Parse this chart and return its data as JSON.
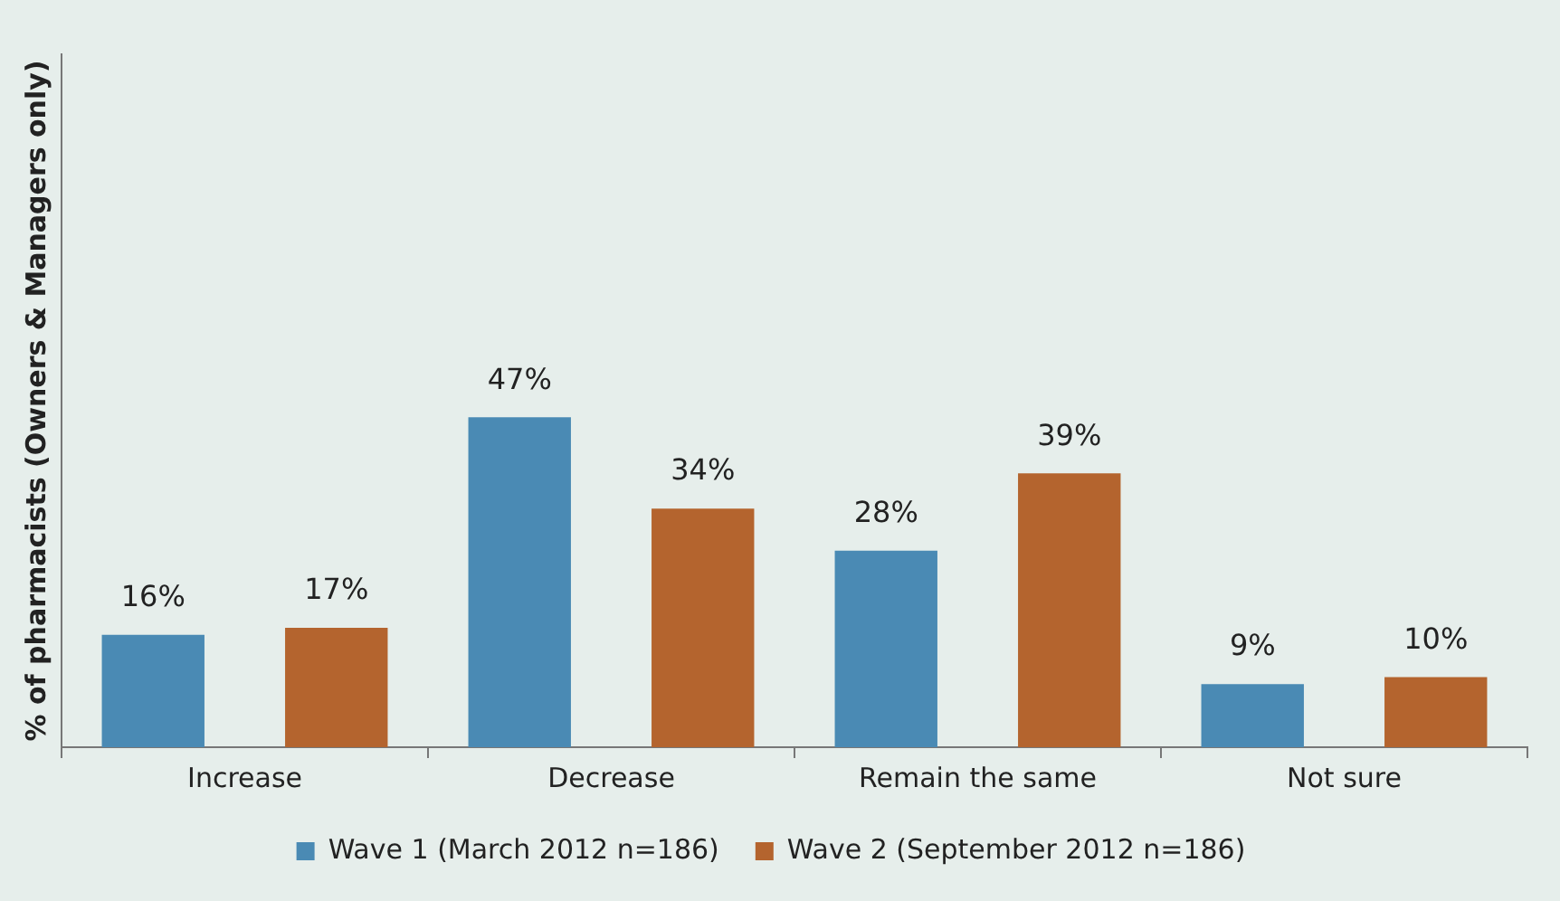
{
  "chart_data": {
    "type": "bar",
    "ylabel": "% of pharmacists (Owners & Managers only)",
    "categories": [
      "Increase",
      "Decrease",
      "Remain the same",
      "Not sure"
    ],
    "series": [
      {
        "name": "Wave 1 (March 2012 n=186)",
        "color": "#4a8ab4",
        "values": [
          16,
          47,
          28,
          9
        ],
        "value_labels": [
          "16%",
          "47%",
          "28%",
          "9%"
        ]
      },
      {
        "name": "Wave 2 (September 2012 n=186)",
        "color": "#b4642e",
        "values": [
          17,
          34,
          39,
          10
        ],
        "value_labels": [
          "17%",
          "34%",
          "39%",
          "10%"
        ]
      }
    ],
    "legend": "bottom",
    "grid": false,
    "tick_labels": "x"
  }
}
